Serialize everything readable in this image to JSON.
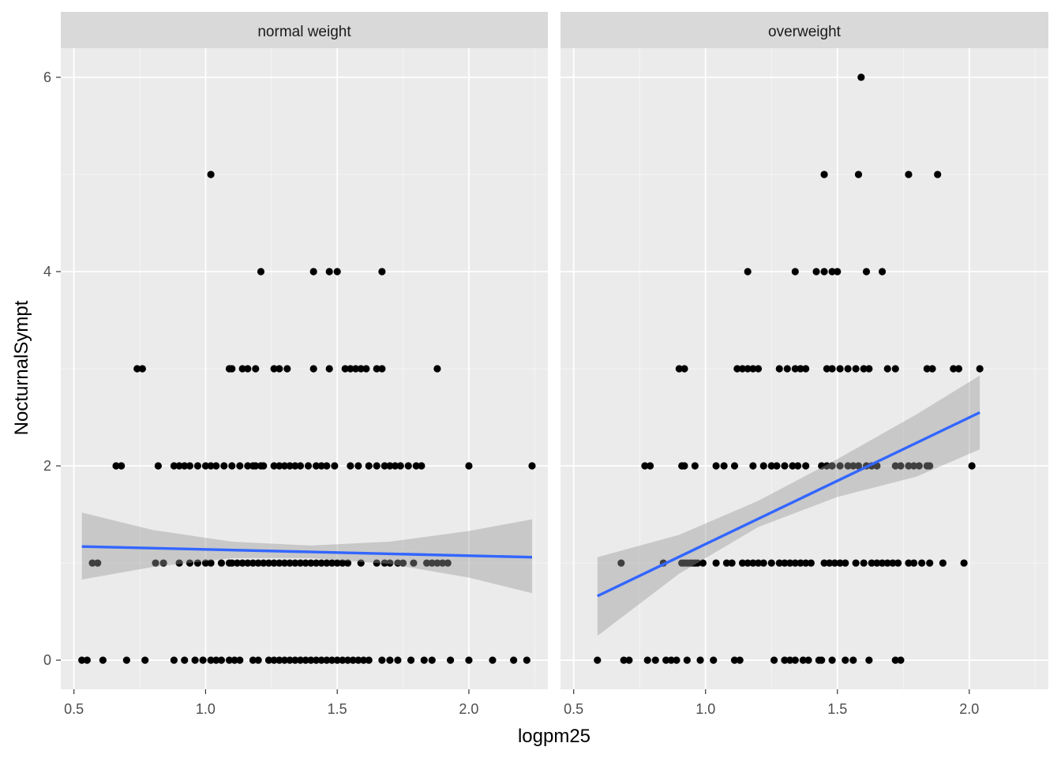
{
  "chart_data": {
    "type": "scatter",
    "xlabel": "logpm25",
    "ylabel": "NocturnalSympt",
    "xlim": [
      0.45,
      2.3
    ],
    "ylim": [
      -0.3,
      6.3
    ],
    "x_ticks": [
      0.5,
      1.0,
      1.5,
      2.0
    ],
    "x_tick_labels": [
      "0.5",
      "1.0",
      "1.5",
      "2.0"
    ],
    "y_ticks": [
      0,
      2,
      4,
      6
    ],
    "y_tick_labels": [
      "0",
      "2",
      "4",
      "6"
    ],
    "grid": true,
    "colors": {
      "panel_bg": "#ebebeb",
      "strip_bg": "#d9d9d9",
      "grid_major": "#ffffff",
      "point": "#000000",
      "smooth_line": "#3366ff",
      "ribbon": "#999999"
    },
    "panels": [
      {
        "label": "normal weight",
        "points": [
          [
            1.02,
            5
          ],
          [
            1.21,
            4
          ],
          [
            1.41,
            4
          ],
          [
            1.47,
            4
          ],
          [
            1.5,
            4
          ],
          [
            1.67,
            4
          ],
          [
            0.74,
            3
          ],
          [
            0.76,
            3
          ],
          [
            1.09,
            3
          ],
          [
            1.1,
            3
          ],
          [
            1.14,
            3
          ],
          [
            1.16,
            3
          ],
          [
            1.19,
            3
          ],
          [
            1.26,
            3
          ],
          [
            1.28,
            3
          ],
          [
            1.31,
            3
          ],
          [
            1.41,
            3
          ],
          [
            1.47,
            3
          ],
          [
            1.53,
            3
          ],
          [
            1.55,
            3
          ],
          [
            1.57,
            3
          ],
          [
            1.59,
            3
          ],
          [
            1.61,
            3
          ],
          [
            1.65,
            3
          ],
          [
            1.67,
            3
          ],
          [
            1.88,
            3
          ],
          [
            0.66,
            2
          ],
          [
            0.68,
            2
          ],
          [
            0.82,
            2
          ],
          [
            0.88,
            2
          ],
          [
            0.9,
            2
          ],
          [
            0.92,
            2
          ],
          [
            0.94,
            2
          ],
          [
            0.97,
            2
          ],
          [
            1.0,
            2
          ],
          [
            1.02,
            2
          ],
          [
            1.04,
            2
          ],
          [
            1.07,
            2
          ],
          [
            1.1,
            2
          ],
          [
            1.13,
            2
          ],
          [
            1.16,
            2
          ],
          [
            1.18,
            2
          ],
          [
            1.19,
            2
          ],
          [
            1.21,
            2
          ],
          [
            1.22,
            2
          ],
          [
            1.26,
            2
          ],
          [
            1.28,
            2
          ],
          [
            1.3,
            2
          ],
          [
            1.32,
            2
          ],
          [
            1.34,
            2
          ],
          [
            1.36,
            2
          ],
          [
            1.39,
            2
          ],
          [
            1.42,
            2
          ],
          [
            1.44,
            2
          ],
          [
            1.46,
            2
          ],
          [
            1.49,
            2
          ],
          [
            1.55,
            2
          ],
          [
            1.58,
            2
          ],
          [
            1.62,
            2
          ],
          [
            1.65,
            2
          ],
          [
            1.68,
            2
          ],
          [
            1.7,
            2
          ],
          [
            1.72,
            2
          ],
          [
            1.74,
            2
          ],
          [
            1.77,
            2
          ],
          [
            1.8,
            2
          ],
          [
            1.82,
            2
          ],
          [
            2.0,
            2
          ],
          [
            2.24,
            2
          ],
          [
            0.57,
            1
          ],
          [
            0.59,
            1
          ],
          [
            0.81,
            1
          ],
          [
            0.84,
            1
          ],
          [
            0.9,
            1
          ],
          [
            0.94,
            1
          ],
          [
            0.97,
            1
          ],
          [
            1.0,
            1
          ],
          [
            1.02,
            1
          ],
          [
            1.06,
            1
          ],
          [
            1.09,
            1
          ],
          [
            1.1,
            1
          ],
          [
            1.12,
            1
          ],
          [
            1.14,
            1
          ],
          [
            1.16,
            1
          ],
          [
            1.18,
            1
          ],
          [
            1.2,
            1
          ],
          [
            1.22,
            1
          ],
          [
            1.24,
            1
          ],
          [
            1.26,
            1
          ],
          [
            1.28,
            1
          ],
          [
            1.3,
            1
          ],
          [
            1.32,
            1
          ],
          [
            1.34,
            1
          ],
          [
            1.36,
            1
          ],
          [
            1.38,
            1
          ],
          [
            1.4,
            1
          ],
          [
            1.42,
            1
          ],
          [
            1.44,
            1
          ],
          [
            1.46,
            1
          ],
          [
            1.48,
            1
          ],
          [
            1.5,
            1
          ],
          [
            1.52,
            1
          ],
          [
            1.54,
            1
          ],
          [
            1.59,
            1
          ],
          [
            1.65,
            1
          ],
          [
            1.68,
            1
          ],
          [
            1.7,
            1
          ],
          [
            1.73,
            1
          ],
          [
            1.75,
            1
          ],
          [
            1.79,
            1
          ],
          [
            1.84,
            1
          ],
          [
            1.86,
            1
          ],
          [
            1.88,
            1
          ],
          [
            1.9,
            1
          ],
          [
            1.92,
            1
          ],
          [
            0.53,
            0
          ],
          [
            0.55,
            0
          ],
          [
            0.61,
            0
          ],
          [
            0.7,
            0
          ],
          [
            0.77,
            0
          ],
          [
            0.88,
            0
          ],
          [
            0.92,
            0
          ],
          [
            0.96,
            0
          ],
          [
            0.99,
            0
          ],
          [
            1.02,
            0
          ],
          [
            1.04,
            0
          ],
          [
            1.06,
            0
          ],
          [
            1.09,
            0
          ],
          [
            1.11,
            0
          ],
          [
            1.13,
            0
          ],
          [
            1.18,
            0
          ],
          [
            1.2,
            0
          ],
          [
            1.24,
            0
          ],
          [
            1.26,
            0
          ],
          [
            1.28,
            0
          ],
          [
            1.3,
            0
          ],
          [
            1.32,
            0
          ],
          [
            1.34,
            0
          ],
          [
            1.36,
            0
          ],
          [
            1.38,
            0
          ],
          [
            1.4,
            0
          ],
          [
            1.42,
            0
          ],
          [
            1.44,
            0
          ],
          [
            1.46,
            0
          ],
          [
            1.48,
            0
          ],
          [
            1.5,
            0
          ],
          [
            1.52,
            0
          ],
          [
            1.54,
            0
          ],
          [
            1.56,
            0
          ],
          [
            1.58,
            0
          ],
          [
            1.6,
            0
          ],
          [
            1.62,
            0
          ],
          [
            1.67,
            0
          ],
          [
            1.7,
            0
          ],
          [
            1.73,
            0
          ],
          [
            1.78,
            0
          ],
          [
            1.83,
            0
          ],
          [
            1.86,
            0
          ],
          [
            1.93,
            0
          ],
          [
            2.0,
            0
          ],
          [
            2.09,
            0
          ],
          [
            2.17,
            0
          ],
          [
            2.22,
            0
          ]
        ],
        "fit": {
          "x": [
            0.53,
            2.24
          ],
          "y": [
            1.17,
            1.06
          ]
        },
        "ribbon": {
          "x": [
            0.53,
            0.8,
            1.1,
            1.4,
            1.7,
            2.0,
            2.24
          ],
          "upper": [
            1.52,
            1.34,
            1.22,
            1.18,
            1.22,
            1.33,
            1.45
          ],
          "lower": [
            0.83,
            0.96,
            1.05,
            1.05,
            0.99,
            0.85,
            0.69
          ]
        }
      },
      {
        "label": "overweight",
        "points": [
          [
            1.59,
            6
          ],
          [
            1.45,
            5
          ],
          [
            1.58,
            5
          ],
          [
            1.77,
            5
          ],
          [
            1.88,
            5
          ],
          [
            1.16,
            4
          ],
          [
            1.34,
            4
          ],
          [
            1.42,
            4
          ],
          [
            1.45,
            4
          ],
          [
            1.48,
            4
          ],
          [
            1.5,
            4
          ],
          [
            1.61,
            4
          ],
          [
            1.67,
            4
          ],
          [
            0.9,
            3
          ],
          [
            0.92,
            3
          ],
          [
            1.12,
            3
          ],
          [
            1.14,
            3
          ],
          [
            1.16,
            3
          ],
          [
            1.18,
            3
          ],
          [
            1.2,
            3
          ],
          [
            1.28,
            3
          ],
          [
            1.31,
            3
          ],
          [
            1.34,
            3
          ],
          [
            1.36,
            3
          ],
          [
            1.38,
            3
          ],
          [
            1.46,
            3
          ],
          [
            1.48,
            3
          ],
          [
            1.51,
            3
          ],
          [
            1.54,
            3
          ],
          [
            1.57,
            3
          ],
          [
            1.6,
            3
          ],
          [
            1.62,
            3
          ],
          [
            1.69,
            3
          ],
          [
            1.72,
            3
          ],
          [
            1.84,
            3
          ],
          [
            1.86,
            3
          ],
          [
            1.94,
            3
          ],
          [
            1.96,
            3
          ],
          [
            2.04,
            3
          ],
          [
            0.77,
            2
          ],
          [
            0.79,
            2
          ],
          [
            0.91,
            2
          ],
          [
            0.92,
            2
          ],
          [
            0.96,
            2
          ],
          [
            1.04,
            2
          ],
          [
            1.07,
            2
          ],
          [
            1.11,
            2
          ],
          [
            1.18,
            2
          ],
          [
            1.22,
            2
          ],
          [
            1.25,
            2
          ],
          [
            1.27,
            2
          ],
          [
            1.3,
            2
          ],
          [
            1.33,
            2
          ],
          [
            1.35,
            2
          ],
          [
            1.38,
            2
          ],
          [
            1.44,
            2
          ],
          [
            1.46,
            2
          ],
          [
            1.48,
            2
          ],
          [
            1.51,
            2
          ],
          [
            1.54,
            2
          ],
          [
            1.56,
            2
          ],
          [
            1.58,
            2
          ],
          [
            1.61,
            2
          ],
          [
            1.63,
            2
          ],
          [
            1.65,
            2
          ],
          [
            1.72,
            2
          ],
          [
            1.74,
            2
          ],
          [
            1.77,
            2
          ],
          [
            1.79,
            2
          ],
          [
            1.81,
            2
          ],
          [
            1.84,
            2
          ],
          [
            1.85,
            2
          ],
          [
            2.01,
            2
          ],
          [
            0.68,
            1
          ],
          [
            0.84,
            1
          ],
          [
            0.91,
            1
          ],
          [
            0.92,
            1
          ],
          [
            0.93,
            1
          ],
          [
            0.94,
            1
          ],
          [
            0.95,
            1
          ],
          [
            0.96,
            1
          ],
          [
            0.97,
            1
          ],
          [
            0.99,
            1
          ],
          [
            1.04,
            1
          ],
          [
            1.08,
            1
          ],
          [
            1.1,
            1
          ],
          [
            1.14,
            1
          ],
          [
            1.16,
            1
          ],
          [
            1.18,
            1
          ],
          [
            1.2,
            1
          ],
          [
            1.22,
            1
          ],
          [
            1.25,
            1
          ],
          [
            1.28,
            1
          ],
          [
            1.3,
            1
          ],
          [
            1.32,
            1
          ],
          [
            1.34,
            1
          ],
          [
            1.36,
            1
          ],
          [
            1.38,
            1
          ],
          [
            1.4,
            1
          ],
          [
            1.45,
            1
          ],
          [
            1.47,
            1
          ],
          [
            1.49,
            1
          ],
          [
            1.51,
            1
          ],
          [
            1.53,
            1
          ],
          [
            1.57,
            1
          ],
          [
            1.6,
            1
          ],
          [
            1.63,
            1
          ],
          [
            1.65,
            1
          ],
          [
            1.67,
            1
          ],
          [
            1.69,
            1
          ],
          [
            1.71,
            1
          ],
          [
            1.73,
            1
          ],
          [
            1.77,
            1
          ],
          [
            1.79,
            1
          ],
          [
            1.82,
            1
          ],
          [
            1.85,
            1
          ],
          [
            1.9,
            1
          ],
          [
            1.98,
            1
          ],
          [
            0.59,
            0
          ],
          [
            0.69,
            0
          ],
          [
            0.71,
            0
          ],
          [
            0.78,
            0
          ],
          [
            0.81,
            0
          ],
          [
            0.85,
            0
          ],
          [
            0.87,
            0
          ],
          [
            0.89,
            0
          ],
          [
            0.93,
            0
          ],
          [
            0.98,
            0
          ],
          [
            1.03,
            0
          ],
          [
            1.11,
            0
          ],
          [
            1.13,
            0
          ],
          [
            1.26,
            0
          ],
          [
            1.3,
            0
          ],
          [
            1.32,
            0
          ],
          [
            1.34,
            0
          ],
          [
            1.37,
            0
          ],
          [
            1.39,
            0
          ],
          [
            1.43,
            0
          ],
          [
            1.44,
            0
          ],
          [
            1.48,
            0
          ],
          [
            1.53,
            0
          ],
          [
            1.56,
            0
          ],
          [
            1.62,
            0
          ],
          [
            1.72,
            0
          ],
          [
            1.74,
            0
          ]
        ],
        "fit": {
          "x": [
            0.59,
            2.04
          ],
          "y": [
            0.66,
            2.55
          ]
        },
        "ribbon": {
          "x": [
            0.59,
            0.9,
            1.2,
            1.5,
            1.8,
            2.04
          ],
          "upper": [
            1.06,
            1.29,
            1.64,
            2.07,
            2.53,
            2.93
          ],
          "lower": [
            0.25,
            0.89,
            1.37,
            1.68,
            1.89,
            2.17
          ]
        }
      }
    ]
  }
}
